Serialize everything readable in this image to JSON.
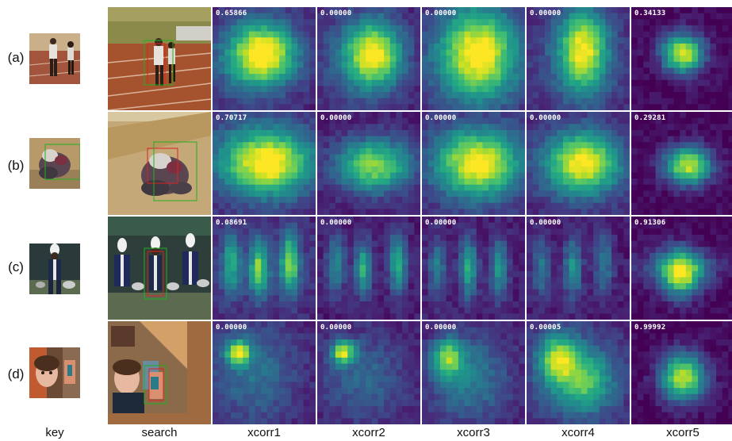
{
  "columns": {
    "key": "key",
    "search": "search",
    "xcorr": [
      "xcorr1",
      "xcorr2",
      "xcorr3",
      "xcorr4",
      "xcorr5"
    ]
  },
  "rows": [
    {
      "label": "(a)",
      "scores": [
        "0.65866",
        "0.00000",
        "0.00000",
        "0.00000",
        "0.34133"
      ]
    },
    {
      "label": "(b)",
      "scores": [
        "0.70717",
        "0.00000",
        "0.00000",
        "0.00000",
        "0.29281"
      ]
    },
    {
      "label": "(c)",
      "scores": [
        "0.08691",
        "0.00000",
        "0.00000",
        "0.00000",
        "0.91306"
      ]
    },
    {
      "label": "(d)",
      "scores": [
        "0.00000",
        "0.00000",
        "0.00000",
        "0.00005",
        "0.99992"
      ]
    }
  ],
  "colors": {
    "box_red": "#e02020",
    "box_green": "#20b020"
  }
}
